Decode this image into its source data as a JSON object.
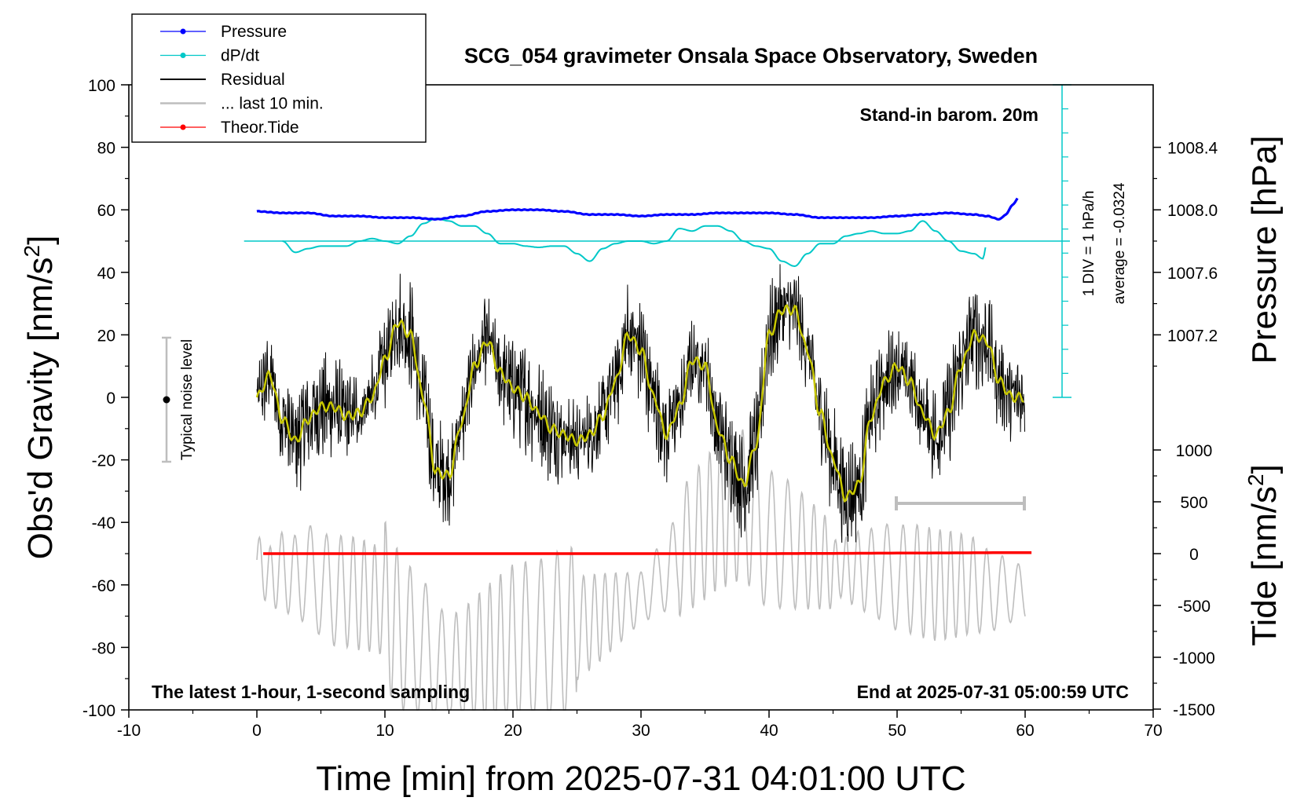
{
  "chart_data": {
    "type": "line",
    "title": "SCG_054 gravimeter Onsala Space Observatory, Sweden",
    "xlabel": "Time [min] from 2025-07-31 04:01:00 UTC",
    "ylabel_left": "Obs'd Gravity [nm/s",
    "ylabel_left_sup": "2",
    "ylabel_left_end": "]",
    "ylabel_right_top": "Pressure [hPa]",
    "ylabel_right_bottom": "Tide [nm/s",
    "ylabel_right_bottom_sup": "2",
    "ylabel_right_bottom_end": "]",
    "xlim": [
      -10,
      70
    ],
    "ylim_left": [
      -100,
      100
    ],
    "x_ticks": [
      "-10",
      "0",
      "10",
      "20",
      "30",
      "40",
      "50",
      "60",
      "70"
    ],
    "y_ticks_left": [
      "100",
      "80",
      "60",
      "40",
      "20",
      "0",
      "-20",
      "-40",
      "-60",
      "-80",
      "-100"
    ],
    "pressure_ticks": [
      "1008.4",
      "1008.0",
      "1007.6",
      "1007.2"
    ],
    "tide_ticks": [
      "1000",
      "500",
      "0",
      "-500",
      "-1000",
      "-1500"
    ],
    "legend": [
      {
        "label": "Pressure",
        "color": "#0000ff",
        "marker": true
      },
      {
        "label": "dP/dt",
        "color": "#00c8c8",
        "marker": true
      },
      {
        "label": "Residual",
        "color": "#000000",
        "marker": false
      },
      {
        "label": "... last 10 min.",
        "color": "#bebebe",
        "marker": false
      },
      {
        "label": "Theor.Tide",
        "color": "#ff0000",
        "marker": true
      }
    ],
    "annotations": {
      "barometer": "Stand-in barom. 20m",
      "div_label": "1 DIV = 1 hPa/h",
      "average_label": "average = -0.0324",
      "noise_label": "Typical noise level",
      "footer_left": "The latest 1-hour, 1-second sampling",
      "footer_right": "End at 2025-07-31 05:00:59 UTC"
    },
    "series": [
      {
        "name": "Pressure",
        "color": "#0000ff",
        "unit": "hPa",
        "x": [
          0,
          2,
          4,
          6,
          8,
          10,
          12,
          14,
          16,
          18,
          20,
          22,
          24,
          26,
          28,
          30,
          32,
          34,
          36,
          38,
          40,
          42,
          44,
          46,
          48,
          50,
          52,
          54,
          56,
          57,
          58,
          58.5,
          59,
          59.5
        ],
        "values": [
          1007.99,
          1007.98,
          1007.98,
          1007.96,
          1007.96,
          1007.95,
          1007.95,
          1007.94,
          1007.96,
          1007.99,
          1008.0,
          1008.0,
          1007.99,
          1007.97,
          1007.97,
          1007.96,
          1007.97,
          1007.97,
          1007.98,
          1007.98,
          1007.98,
          1007.97,
          1007.95,
          1007.95,
          1007.95,
          1007.96,
          1007.97,
          1007.98,
          1007.97,
          1007.96,
          1007.94,
          1007.97,
          1008.03,
          1008.08
        ]
      },
      {
        "name": "dP/dt",
        "color": "#00c8c8",
        "unit": "hPa/h",
        "x": [
          2,
          3,
          4,
          5,
          6,
          7,
          8,
          9,
          10,
          11,
          12,
          13,
          14,
          15,
          16,
          17,
          18,
          19,
          20,
          21,
          22,
          23,
          24,
          25,
          26,
          27,
          28,
          29,
          30,
          31,
          32,
          33,
          34,
          35,
          36,
          37,
          38,
          39,
          40,
          41,
          42,
          43,
          44,
          45,
          46,
          47,
          48,
          49,
          50,
          51,
          52,
          53,
          54,
          55,
          56,
          56.7,
          57
        ],
        "values": [
          0.0,
          -0.45,
          -0.3,
          -0.2,
          -0.2,
          -0.2,
          0.0,
          0.1,
          0.0,
          -0.1,
          0.2,
          0.7,
          0.9,
          0.8,
          0.6,
          0.6,
          0.3,
          -0.1,
          -0.1,
          -0.2,
          -0.25,
          -0.2,
          -0.2,
          -0.5,
          -0.8,
          -0.3,
          -0.1,
          0.0,
          0.0,
          -0.1,
          0.0,
          0.5,
          0.4,
          0.6,
          0.6,
          0.4,
          0.0,
          -0.2,
          -0.3,
          -0.8,
          -1.0,
          -0.5,
          -0.1,
          -0.1,
          0.2,
          0.3,
          0.4,
          0.3,
          0.3,
          0.4,
          0.8,
          0.4,
          0.0,
          -0.4,
          -0.5,
          -0.7,
          -0.1
        ]
      },
      {
        "name": "Residual",
        "color": "#000000",
        "unit": "nm/s2",
        "x": [
          0,
          1,
          2,
          3,
          4,
          5,
          6,
          7,
          8,
          9,
          10,
          11,
          12,
          13,
          14,
          15,
          16,
          17,
          18,
          19,
          20,
          21,
          22,
          23,
          24,
          25,
          26,
          27,
          28,
          29,
          30,
          31,
          32,
          33,
          34,
          35,
          36,
          37,
          38,
          39,
          40,
          41,
          42,
          43,
          44,
          45,
          46,
          47,
          48,
          49,
          50,
          51,
          52,
          53,
          54,
          55,
          56,
          57,
          58,
          59,
          60
        ],
        "values": [
          0,
          7,
          -7,
          -14,
          -7,
          -3,
          -3,
          -6,
          -5,
          0,
          12,
          24,
          20,
          0,
          -24,
          -25,
          -8,
          10,
          18,
          8,
          3,
          0,
          -5,
          -10,
          -12,
          -14,
          -12,
          -6,
          5,
          20,
          15,
          0,
          -12,
          -3,
          12,
          10,
          -10,
          -20,
          -28,
          -15,
          20,
          28,
          28,
          15,
          -5,
          -20,
          -32,
          -28,
          -6,
          5,
          10,
          5,
          -5,
          -12,
          -5,
          10,
          20,
          18,
          5,
          0,
          0
        ]
      },
      {
        "name": "... last 10 min.",
        "color": "#bebebe",
        "unit": "nm/s2",
        "x": [
          0,
          1,
          2,
          3,
          4,
          5,
          6,
          7,
          8,
          9,
          10,
          11,
          12,
          13,
          14,
          15,
          16,
          17,
          18,
          19,
          20,
          21,
          22,
          23,
          24,
          25,
          26,
          27,
          28,
          29,
          30,
          31,
          32,
          33,
          34,
          35,
          36,
          37,
          38,
          39,
          40,
          41,
          42,
          43,
          44,
          45,
          46,
          47,
          48,
          49,
          50,
          51,
          52,
          53,
          54,
          55,
          56,
          57,
          58,
          59,
          60
        ],
        "values": [
          -52,
          -58,
          -55,
          -58,
          -56,
          -60,
          -62,
          -62,
          -63,
          -64,
          -66,
          -74,
          -78,
          -80,
          -86,
          -88,
          -88,
          -86,
          -84,
          -82,
          -80,
          -80,
          -80,
          -78,
          -76,
          -74,
          -72,
          -70,
          -68,
          -66,
          -64,
          -60,
          -56,
          -50,
          -46,
          -42,
          -38,
          -36,
          -34,
          -40,
          -46,
          -46,
          -48,
          -50,
          -52,
          -54,
          -55,
          -55,
          -56,
          -56,
          -58,
          -58,
          -59,
          -60,
          -60,
          -60,
          -60,
          -62,
          -62,
          -62,
          -62
        ]
      },
      {
        "name": "Theor.Tide",
        "color": "#ff0000",
        "unit": "nm/s2",
        "x": [
          0,
          10,
          20,
          30,
          40,
          50,
          60
        ],
        "values": [
          0,
          0,
          0,
          0,
          0,
          5,
          10
        ]
      }
    ]
  }
}
